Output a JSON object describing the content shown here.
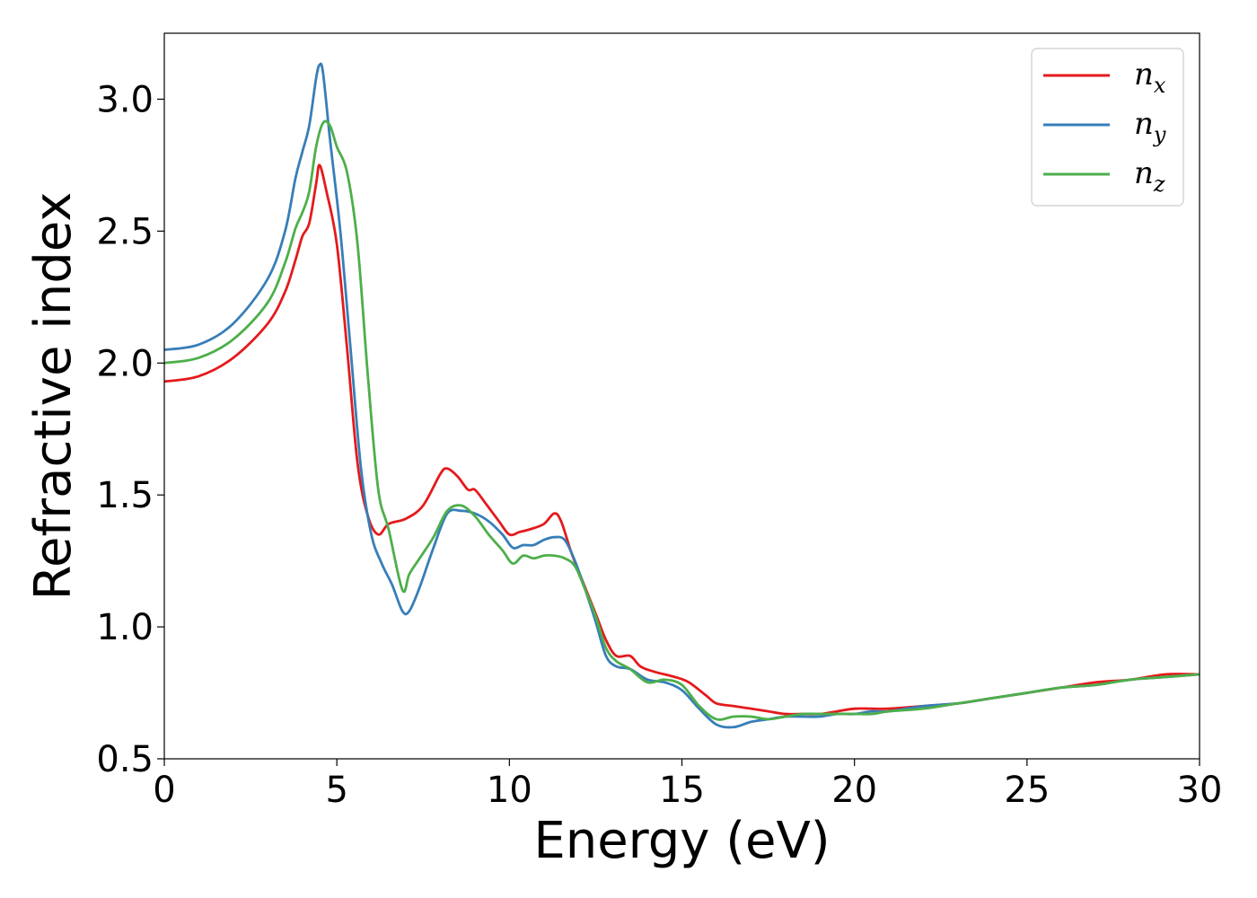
{
  "chart_data": {
    "type": "line",
    "title": "",
    "xlabel": "Energy (eV)",
    "ylabel": "Refractive index",
    "xlim": [
      0,
      30
    ],
    "ylim": [
      0.5,
      3.25
    ],
    "xticks": [
      0,
      5,
      10,
      15,
      20,
      25,
      30
    ],
    "xtick_labels": [
      "0",
      "5",
      "10",
      "15",
      "20",
      "25",
      "30"
    ],
    "yticks": [
      0.5,
      1.0,
      1.5,
      2.0,
      2.5,
      3.0
    ],
    "ytick_labels": [
      "0.5",
      "1.0",
      "1.5",
      "2.0",
      "2.5",
      "3.0"
    ],
    "grid": false,
    "legend_position": "top-right",
    "series": [
      {
        "name": "n",
        "subscript": "x",
        "color": "#e41a1c",
        "x": [
          0,
          1,
          2,
          3,
          3.5,
          3.8,
          4.0,
          4.2,
          4.4,
          4.5,
          4.7,
          5.0,
          5.3,
          5.6,
          5.9,
          6.2,
          6.5,
          7.0,
          7.5,
          8.0,
          8.2,
          8.5,
          8.8,
          9.0,
          9.3,
          9.7,
          10.0,
          10.3,
          10.6,
          11.0,
          11.3,
          11.5,
          11.8,
          12.1,
          12.5,
          12.8,
          13.1,
          13.5,
          13.8,
          14.2,
          14.8,
          15.2,
          15.7,
          16.0,
          16.5,
          17.0,
          17.5,
          18.0,
          18.5,
          19.0,
          19.5,
          20.0,
          20.5,
          21.0,
          22.0,
          23.0,
          24.0,
          25.0,
          26.0,
          27.0,
          28.0,
          29.0,
          30.0
        ],
        "values": [
          1.93,
          1.95,
          2.02,
          2.15,
          2.27,
          2.39,
          2.48,
          2.53,
          2.68,
          2.75,
          2.65,
          2.45,
          2.05,
          1.62,
          1.42,
          1.35,
          1.39,
          1.41,
          1.46,
          1.58,
          1.6,
          1.57,
          1.52,
          1.52,
          1.47,
          1.4,
          1.35,
          1.36,
          1.37,
          1.39,
          1.43,
          1.4,
          1.28,
          1.18,
          1.05,
          0.95,
          0.89,
          0.89,
          0.85,
          0.83,
          0.81,
          0.79,
          0.74,
          0.71,
          0.7,
          0.69,
          0.68,
          0.67,
          0.67,
          0.67,
          0.68,
          0.69,
          0.69,
          0.69,
          0.7,
          0.71,
          0.73,
          0.75,
          0.77,
          0.79,
          0.8,
          0.82,
          0.82
        ]
      },
      {
        "name": "n",
        "subscript": "y",
        "color": "#377eb8",
        "x": [
          0,
          1,
          2,
          3,
          3.5,
          3.8,
          4.0,
          4.2,
          4.4,
          4.5,
          4.6,
          4.8,
          5.1,
          5.4,
          5.7,
          6.0,
          6.3,
          6.6,
          6.9,
          7.1,
          7.4,
          7.8,
          8.2,
          8.6,
          9.0,
          9.4,
          9.8,
          10.1,
          10.4,
          10.7,
          11.0,
          11.3,
          11.6,
          11.9,
          12.2,
          12.5,
          12.8,
          13.1,
          13.5,
          14.0,
          14.5,
          15.0,
          15.5,
          16.0,
          16.5,
          17.0,
          17.5,
          18.0,
          18.5,
          19.0,
          19.5,
          20.0,
          20.5,
          21.0,
          22.0,
          23.0,
          24.0,
          25.0,
          26.0,
          27.0,
          28.0,
          29.0,
          30.0
        ],
        "values": [
          2.05,
          2.07,
          2.15,
          2.32,
          2.5,
          2.7,
          2.8,
          2.9,
          3.08,
          3.13,
          3.1,
          2.85,
          2.5,
          2.05,
          1.6,
          1.35,
          1.24,
          1.16,
          1.06,
          1.06,
          1.15,
          1.3,
          1.43,
          1.44,
          1.43,
          1.4,
          1.35,
          1.3,
          1.31,
          1.31,
          1.33,
          1.34,
          1.33,
          1.25,
          1.14,
          1.02,
          0.89,
          0.85,
          0.84,
          0.8,
          0.79,
          0.76,
          0.69,
          0.63,
          0.62,
          0.64,
          0.65,
          0.66,
          0.66,
          0.66,
          0.67,
          0.67,
          0.68,
          0.68,
          0.7,
          0.71,
          0.73,
          0.75,
          0.77,
          0.78,
          0.8,
          0.81,
          0.82
        ]
      },
      {
        "name": "n",
        "subscript": "z",
        "color": "#4daf4a",
        "x": [
          0,
          1,
          2,
          3,
          3.5,
          3.8,
          4.0,
          4.2,
          4.4,
          4.6,
          4.8,
          5.0,
          5.3,
          5.6,
          5.9,
          6.2,
          6.5,
          6.9,
          7.1,
          7.4,
          7.8,
          8.2,
          8.6,
          9.0,
          9.4,
          9.8,
          10.1,
          10.4,
          10.7,
          11.0,
          11.3,
          11.6,
          11.9,
          12.2,
          12.5,
          12.8,
          13.1,
          13.5,
          14.0,
          14.5,
          15.0,
          15.5,
          16.0,
          16.5,
          17.0,
          17.5,
          18.0,
          18.5,
          19.0,
          19.5,
          20.0,
          20.5,
          21.0,
          22.0,
          23.0,
          24.0,
          25.0,
          26.0,
          27.0,
          28.0,
          29.0,
          30.0
        ],
        "values": [
          2.0,
          2.02,
          2.09,
          2.23,
          2.38,
          2.51,
          2.57,
          2.65,
          2.82,
          2.91,
          2.9,
          2.82,
          2.72,
          2.45,
          1.95,
          1.52,
          1.37,
          1.14,
          1.2,
          1.26,
          1.34,
          1.44,
          1.46,
          1.42,
          1.35,
          1.29,
          1.24,
          1.27,
          1.26,
          1.27,
          1.27,
          1.26,
          1.23,
          1.14,
          1.04,
          0.92,
          0.87,
          0.84,
          0.79,
          0.8,
          0.78,
          0.7,
          0.65,
          0.66,
          0.66,
          0.65,
          0.66,
          0.67,
          0.67,
          0.67,
          0.67,
          0.67,
          0.68,
          0.69,
          0.71,
          0.73,
          0.75,
          0.77,
          0.78,
          0.8,
          0.81,
          0.82
        ]
      }
    ]
  }
}
